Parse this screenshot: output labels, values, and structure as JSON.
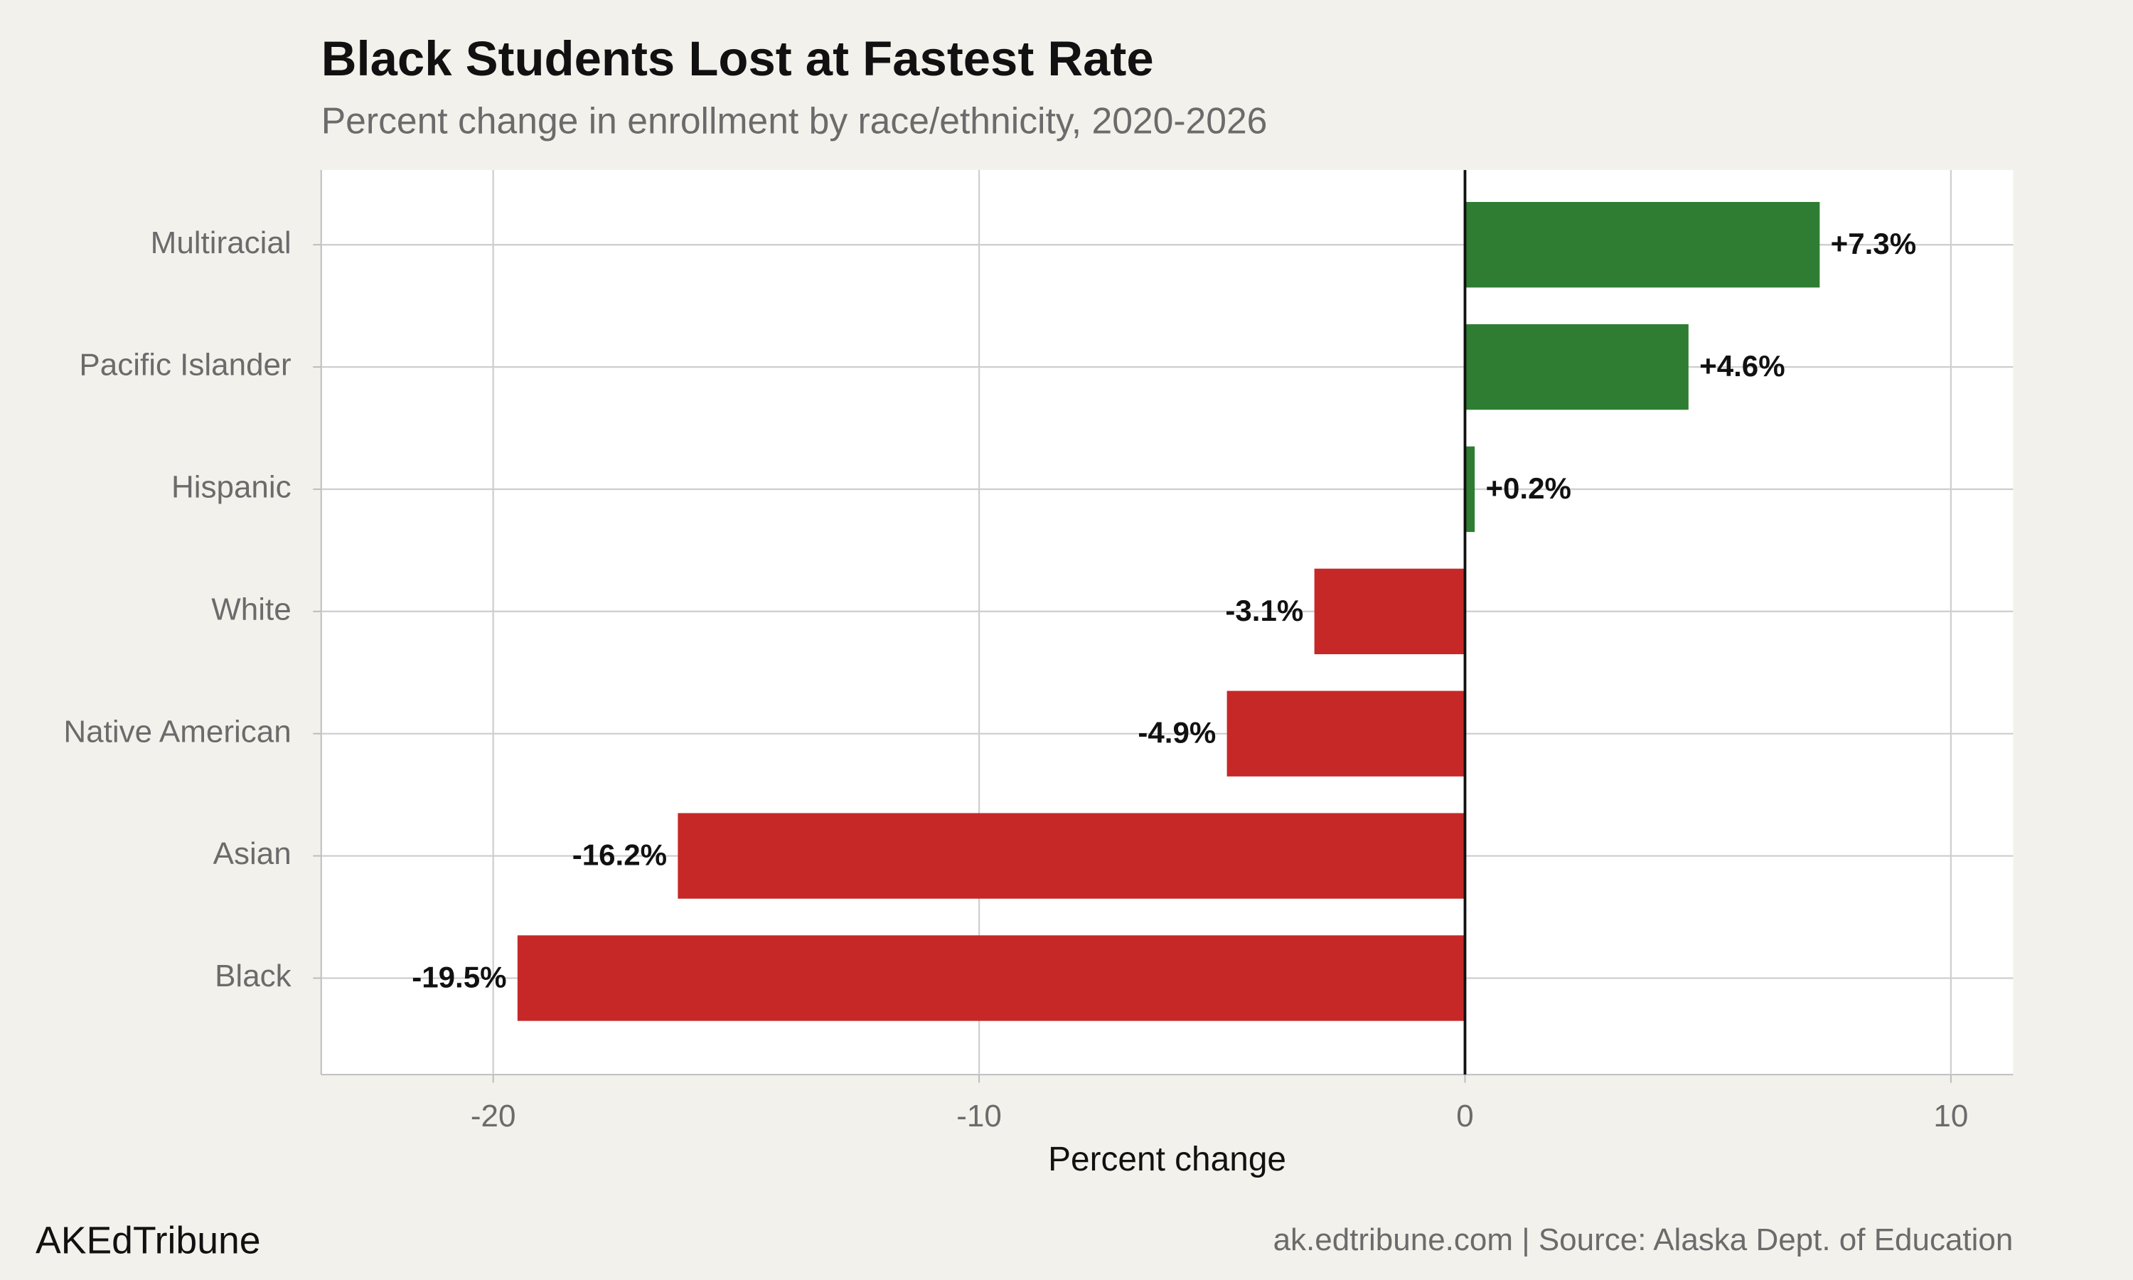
{
  "chart_data": {
    "type": "hbar",
    "title": "Black Students Lost at Fastest Rate",
    "subtitle": "Percent change in enrollment by race/ethnicity, 2020-2026",
    "x_label": "Percent change",
    "categories": [
      "Multiracial",
      "Pacific Islander",
      "Hispanic",
      "White",
      "Native American",
      "Asian",
      "Black"
    ],
    "values": [
      7.3,
      4.6,
      0.2,
      -3.1,
      -4.9,
      -16.2,
      -19.5
    ],
    "value_labels": [
      "+7.3%",
      "+4.6%",
      "+0.2%",
      "-3.1%",
      "-4.9%",
      "-16.2%",
      "-19.5%"
    ],
    "positive_color": "#2e7d32",
    "negative_color": "#c62828",
    "xlim": [
      -23.54,
      11.28
    ],
    "xticks": [
      -20,
      -10,
      0,
      10
    ],
    "grid": true,
    "brand": "AKEdTribune",
    "source": "ak.edtribune.com | Source: Alaska Dept. of Education"
  }
}
